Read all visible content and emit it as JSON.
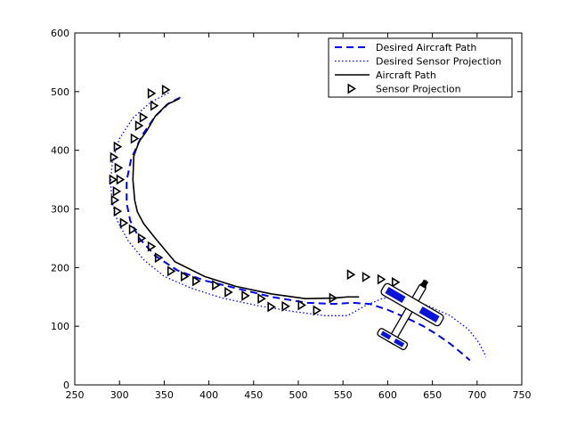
{
  "chart_data": {
    "type": "line",
    "title": "",
    "xlabel": "",
    "ylabel": "",
    "xlim": [
      250,
      750
    ],
    "ylim": [
      0,
      600
    ],
    "x_ticks": [
      250,
      300,
      350,
      400,
      450,
      500,
      550,
      600,
      650,
      700,
      750
    ],
    "y_ticks": [
      0,
      100,
      200,
      300,
      400,
      500,
      600
    ],
    "grid": false,
    "legend_position": "top-right",
    "series": [
      {
        "name": "Desired Aircraft Path",
        "style": "dashed",
        "color": "#0000ff",
        "x": [
          368,
          355,
          340,
          325,
          313,
          308,
          308,
          312,
          322,
          340,
          365,
          395,
          430,
          470,
          510,
          540,
          560,
          580,
          600,
          620,
          640,
          655,
          670,
          682,
          692
        ],
        "y": [
          490,
          480,
          458,
          425,
          385,
          348,
          310,
          280,
          250,
          220,
          195,
          178,
          165,
          150,
          140,
          138,
          140,
          138,
          128,
          115,
          100,
          86,
          70,
          55,
          42
        ]
      },
      {
        "name": "Desired Sensor Projection",
        "style": "dotted",
        "color": "#0000ff",
        "x": [
          355,
          335,
          315,
          300,
          292,
          290,
          292,
          298,
          310,
          328,
          350,
          380,
          415,
          455,
          495,
          530,
          555,
          575,
          595,
          620,
          645,
          670,
          690,
          702,
          710
        ],
        "y": [
          498,
          482,
          455,
          420,
          380,
          345,
          310,
          278,
          245,
          212,
          185,
          165,
          148,
          135,
          125,
          118,
          118,
          135,
          148,
          148,
          135,
          118,
          95,
          72,
          48
        ]
      },
      {
        "name": "Aircraft Path",
        "style": "solid",
        "color": "#000000",
        "x": [
          367,
          353,
          340,
          330,
          322,
          316,
          315,
          317,
          320,
          327,
          340,
          362,
          395,
          430,
          470,
          508,
          540,
          555,
          568
        ],
        "y": [
          488,
          478,
          458,
          432,
          415,
          390,
          350,
          315,
          295,
          275,
          250,
          210,
          185,
          168,
          155,
          147,
          148,
          150,
          150
        ]
      },
      {
        "name": "Sensor Projection",
        "style": "markers",
        "marker": "triangle-right",
        "color": "#000000",
        "x": [
          351,
          335,
          338,
          326,
          321,
          316,
          297,
          293,
          298,
          300,
          292,
          296,
          294,
          297,
          304,
          314,
          324,
          335,
          343,
          357,
          372,
          385,
          407,
          421,
          440,
          458,
          469,
          485,
          503,
          520,
          538,
          558,
          575,
          592,
          608
        ],
        "y": [
          503,
          497,
          476,
          456,
          442,
          420,
          406,
          388,
          370,
          350,
          350,
          330,
          315,
          296,
          276,
          265,
          250,
          236,
          217,
          194,
          185,
          177,
          170,
          158,
          152,
          147,
          133,
          134,
          136,
          127,
          148,
          188,
          184,
          180,
          175
        ]
      }
    ],
    "annotations": [
      {
        "type": "aircraft-icon",
        "x": 628,
        "y": 138,
        "heading_deg": 60
      }
    ]
  }
}
